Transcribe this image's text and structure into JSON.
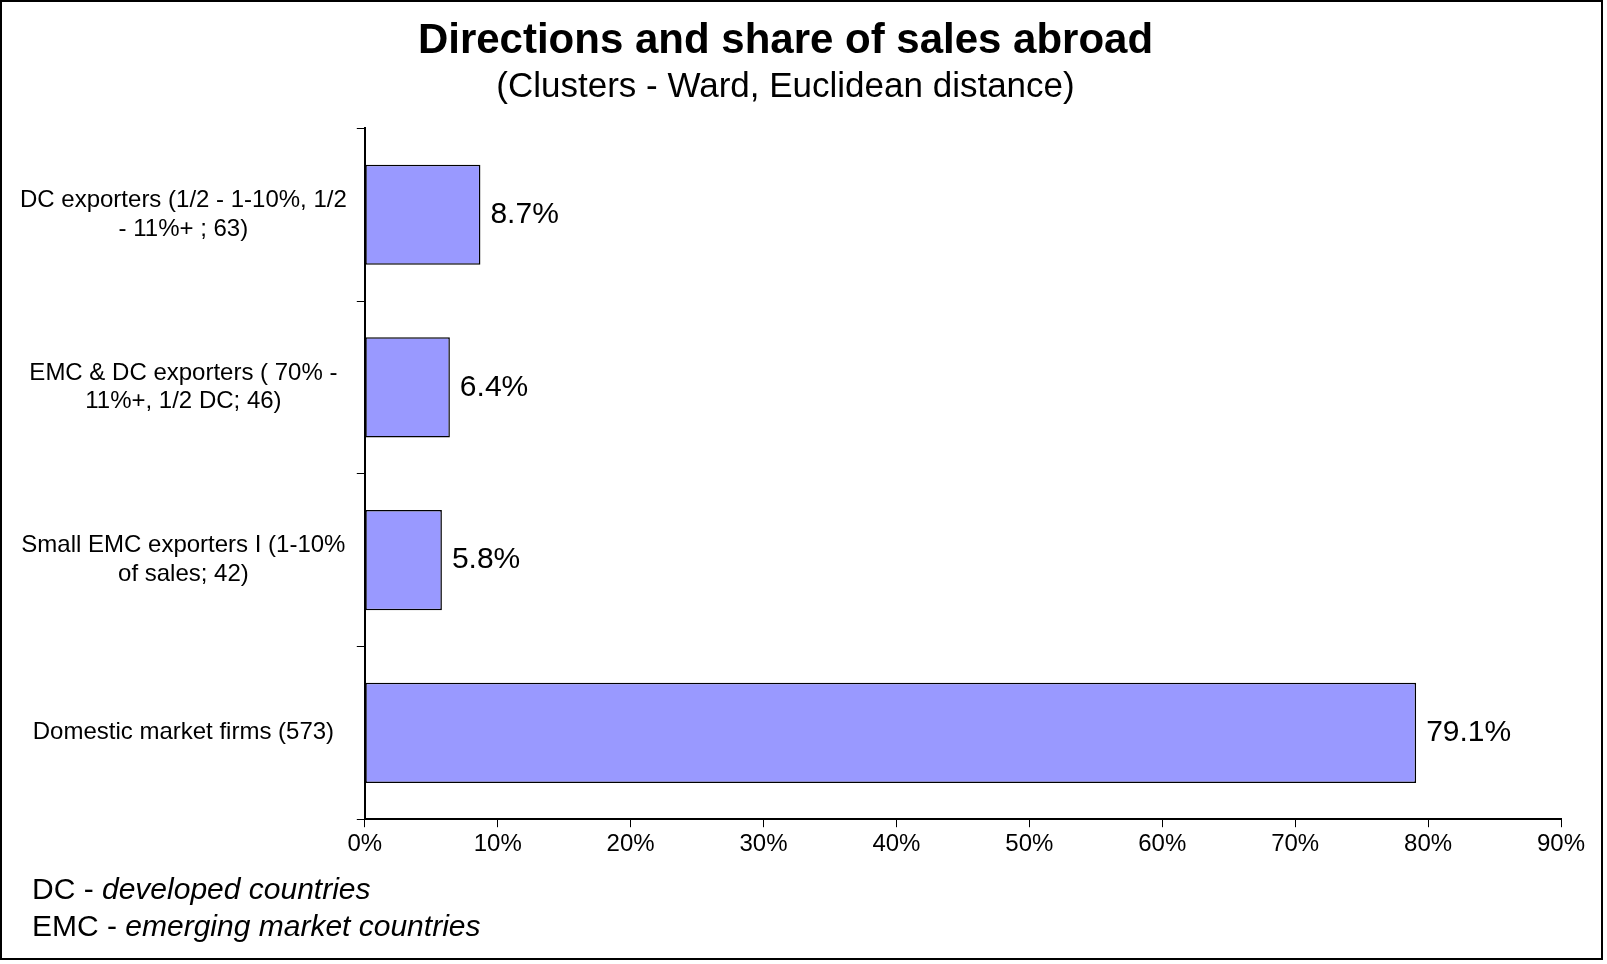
{
  "chart_data": {
    "type": "bar",
    "orientation": "horizontal",
    "title": "Directions and share of sales abroad",
    "subtitle": "(Clusters - Ward, Euclidean distance)",
    "categories": [
      "DC exporters (1/2 - 1-10%, 1/2 - 11%+ ; 63)",
      "EMC & DC exporters ( 70% - 11%+, 1/2 DC; 46)",
      "Small EMC exporters I (1-10% of sales; 42)",
      "Domestic market firms (573)"
    ],
    "values": [
      8.7,
      6.4,
      5.8,
      79.1
    ],
    "value_labels": [
      "8.7%",
      "6.4%",
      "5.8%",
      "79.1%"
    ],
    "color": "#9999ff",
    "xlim": [
      0,
      90
    ],
    "xticks": [
      {
        "value": 0,
        "label": "0%"
      },
      {
        "value": 10,
        "label": "10%"
      },
      {
        "value": 20,
        "label": "20%"
      },
      {
        "value": 30,
        "label": "30%"
      },
      {
        "value": 40,
        "label": "40%"
      },
      {
        "value": 50,
        "label": "50%"
      },
      {
        "value": 60,
        "label": "60%"
      },
      {
        "value": 70,
        "label": "70%"
      },
      {
        "value": 80,
        "label": "80%"
      },
      {
        "value": 90,
        "label": "90%"
      }
    ],
    "grid": false,
    "legend": false,
    "annotations": [
      "DC - developed countries",
      "EMC - emerging market countries"
    ]
  }
}
